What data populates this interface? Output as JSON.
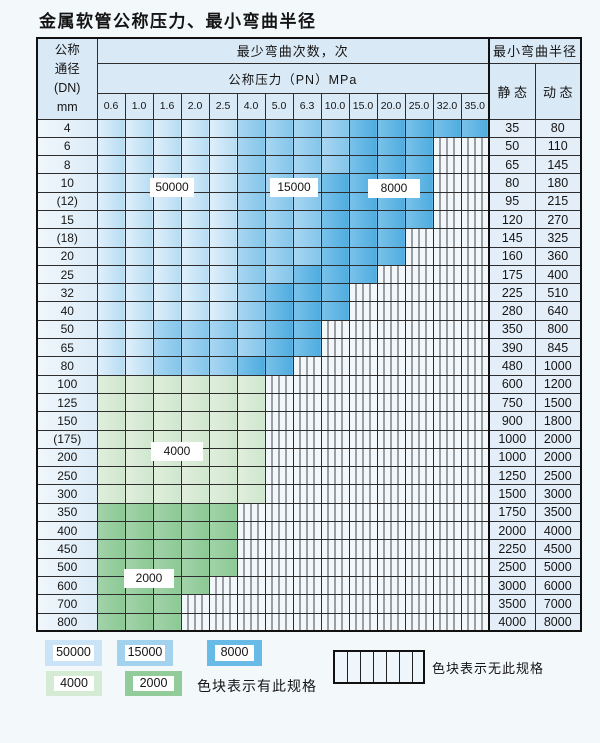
{
  "page_title": "金属软管公称压力、最小弯曲半径",
  "table": {
    "dn_header_lines": [
      "公称",
      "通径",
      "(DN)",
      "mm"
    ],
    "cycles_header": "最少弯曲次数，次",
    "pressure_header": "公称压力（PN）MPa",
    "pressure_columns": [
      "0.6",
      "1.0",
      "1.6",
      "2.0",
      "2.5",
      "4.0",
      "5.0",
      "6.3",
      "10.0",
      "15.0",
      "20.0",
      "25.0",
      "32.0",
      "35.0"
    ],
    "radius_header": "最小弯曲半径",
    "static_header": "静 态",
    "dynamic_header": "动 态",
    "zone_legend_meaning": {
      "L": "50000",
      "M": "15000",
      "D": "8000",
      "G": "4000",
      "E": "2000",
      "X": "无此规格"
    },
    "rows": [
      {
        "dn": "4",
        "zones": "LLLLLMMMMDDDDD",
        "static": "35",
        "dynamic": "80"
      },
      {
        "dn": "6",
        "zones": "LLLLLMMMMDDDXX",
        "static": "50",
        "dynamic": "110"
      },
      {
        "dn": "8",
        "zones": "LLLLLMMMMDDDXX",
        "static": "65",
        "dynamic": "145"
      },
      {
        "dn": "10",
        "zones": "LLLLLMMMDDDDXX",
        "static": "80",
        "dynamic": "180"
      },
      {
        "dn": "(12)",
        "zones": "LLLLLMMMDDDDXX",
        "static": "95",
        "dynamic": "215"
      },
      {
        "dn": "15",
        "zones": "LLLLLMMMDDDDXX",
        "static": "120",
        "dynamic": "270"
      },
      {
        "dn": "(18)",
        "zones": "LLLLLMMMDDDXXX",
        "static": "145",
        "dynamic": "325"
      },
      {
        "dn": "20",
        "zones": "LLLLLMMMDDDXXX",
        "static": "160",
        "dynamic": "360"
      },
      {
        "dn": "25",
        "zones": "LLLLLMMDDDXXXX",
        "static": "175",
        "dynamic": "400"
      },
      {
        "dn": "32",
        "zones": "LLLLLMDDDXXXXX",
        "static": "225",
        "dynamic": "510"
      },
      {
        "dn": "40",
        "zones": "LLLLLMDDDXXXXX",
        "static": "280",
        "dynamic": "640"
      },
      {
        "dn": "50",
        "zones": "LLMMMMDDXXXXXX",
        "static": "350",
        "dynamic": "800"
      },
      {
        "dn": "65",
        "zones": "LLMMMMDDXXXXXX",
        "static": "390",
        "dynamic": "845"
      },
      {
        "dn": "80",
        "zones": "LLMMMDDXXXXXXX",
        "static": "480",
        "dynamic": "1000"
      },
      {
        "dn": "100",
        "zones": "GGGGGGXXXXXXXX",
        "static": "600",
        "dynamic": "1200"
      },
      {
        "dn": "125",
        "zones": "GGGGGGXXXXXXXX",
        "static": "750",
        "dynamic": "1500"
      },
      {
        "dn": "150",
        "zones": "GGGGGGXXXXXXXX",
        "static": "900",
        "dynamic": "1800"
      },
      {
        "dn": "(175)",
        "zones": "GGGGGGXXXXXXXX",
        "static": "1000",
        "dynamic": "2000"
      },
      {
        "dn": "200",
        "zones": "GGGGGGXXXXXXXX",
        "static": "1000",
        "dynamic": "2000"
      },
      {
        "dn": "250",
        "zones": "GGGGGGXXXXXXXX",
        "static": "1250",
        "dynamic": "2500"
      },
      {
        "dn": "300",
        "zones": "GGGGGGXXXXXXXX",
        "static": "1500",
        "dynamic": "3000"
      },
      {
        "dn": "350",
        "zones": "EEEEEXXXXXXXXX",
        "static": "1750",
        "dynamic": "3500"
      },
      {
        "dn": "400",
        "zones": "EEEEEXXXXXXXXX",
        "static": "2000",
        "dynamic": "4000"
      },
      {
        "dn": "450",
        "zones": "EEEEEXXXXXXXXX",
        "static": "2250",
        "dynamic": "4500"
      },
      {
        "dn": "500",
        "zones": "EEEEEXXXXXXXXX",
        "static": "2500",
        "dynamic": "5000"
      },
      {
        "dn": "600",
        "zones": "EEEEXXXXXXXXXX",
        "static": "3000",
        "dynamic": "6000"
      },
      {
        "dn": "700",
        "zones": "EEEXXXXXXXXXXX",
        "static": "3500",
        "dynamic": "7000"
      },
      {
        "dn": "800",
        "zones": "EEEXXXXXXXXXXX",
        "static": "4000",
        "dynamic": "8000"
      }
    ],
    "cycle_count_labels": [
      "50000",
      "15000",
      "8000",
      "4000",
      "2000"
    ]
  },
  "legend": {
    "blocks": [
      {
        "label": "50000",
        "color": "#cbe3f6"
      },
      {
        "label": "15000",
        "color": "#a3d2ef"
      },
      {
        "label": "8000",
        "color": "#68bbe6"
      },
      {
        "label": "4000",
        "color": "#d6ebd4"
      },
      {
        "label": "2000",
        "color": "#92cc9a"
      }
    ],
    "available_text": "色块表示有此规格",
    "unavailable_text": "色块表示无此规格"
  },
  "colors": {
    "zone_50000": "#bedff4",
    "zone_15000": "#96cfef",
    "zone_8000": "#5fb5e3",
    "zone_4000": "#d6ead3",
    "zone_2000": "#95cd9d",
    "header_bg": "#d9e9f6",
    "grid_line": "#2e2e2e"
  }
}
